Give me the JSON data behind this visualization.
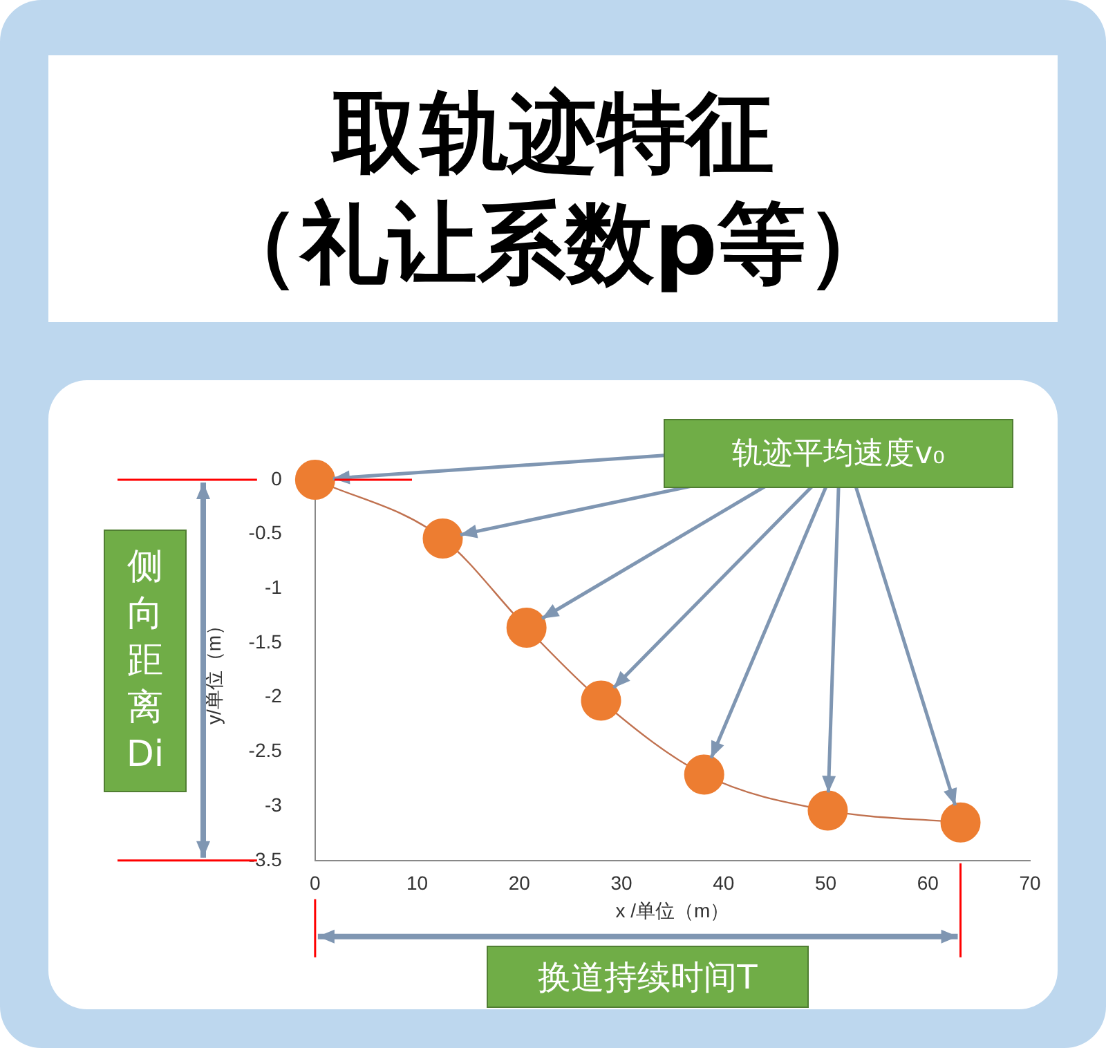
{
  "chart_data": {
    "type": "scatter",
    "title": "取轨迹特征",
    "subtitle": "（礼让系数p等）",
    "xlabel": "x /单位（m）",
    "ylabel": "y/单位（m）",
    "xlim": [
      0,
      70
    ],
    "xticks": [
      0,
      10,
      20,
      30,
      40,
      50,
      60,
      70
    ],
    "ylim": [
      -3.5,
      0
    ],
    "yticks": [
      0,
      -0.5,
      -1,
      -1.5,
      -2,
      -2.5,
      -3,
      -3.5
    ],
    "grid": false,
    "legend": false,
    "series": [
      {
        "type": "line",
        "color": "#c0714f",
        "x": [
          0,
          12.5,
          20.7,
          28,
          38.1,
          50.2,
          63.2
        ],
        "values": [
          0,
          -0.54,
          -1.36,
          -2.03,
          -2.71,
          -3.04,
          -3.15
        ]
      },
      {
        "type": "scatter",
        "color": "#ed7d31",
        "x": [
          0,
          12.5,
          20.7,
          28,
          38.1,
          50.2,
          63.2
        ],
        "values": [
          0,
          -0.54,
          -1.36,
          -2.03,
          -2.71,
          -3.04,
          -3.15
        ]
      }
    ],
    "annotations": [
      "轨迹平均速度v₀",
      "侧向距离Di",
      "换道持续时间T"
    ]
  }
}
